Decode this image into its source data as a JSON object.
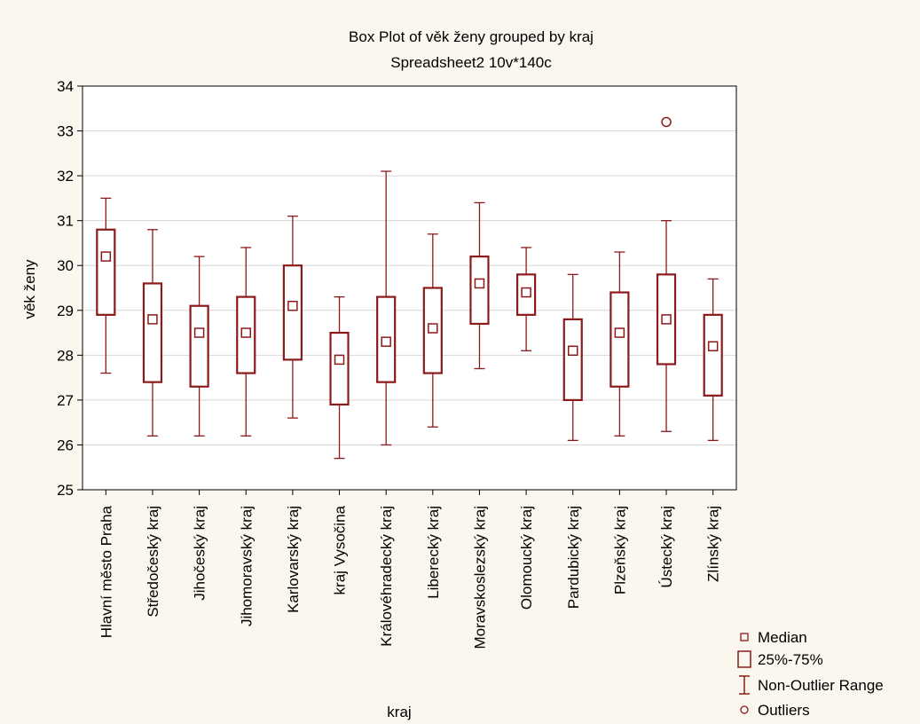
{
  "chart_data": {
    "type": "box",
    "title": "Box Plot of věk ženy grouped by  kraj",
    "subtitle": "Spreadsheet2 10v*140c",
    "xlabel": "kraj",
    "ylabel": "věk ženy",
    "ylim": [
      25,
      34
    ],
    "yticks": [
      25,
      26,
      27,
      28,
      29,
      30,
      31,
      32,
      33,
      34
    ],
    "grid": true,
    "legend_position": "bottom-right",
    "colors": {
      "box": "#8b1a1a",
      "grid": "#d7d7d7",
      "background": "#fbf6ee",
      "plot_background": "#ffffff"
    },
    "legend": [
      {
        "key": "median",
        "label": "Median"
      },
      {
        "key": "box",
        "label": "25%-75%"
      },
      {
        "key": "range",
        "label": "Non-Outlier Range"
      },
      {
        "key": "outlier",
        "label": "Outliers"
      }
    ],
    "categories": [
      "Hlavní město Praha",
      "Středočeský kraj",
      "Jihočeský kraj",
      "Jihomoravský kraj",
      "Karlovarský kraj",
      "kraj Vysočina",
      "Královéhradecký kraj",
      "Liberecký kraj",
      "Moravskoslezský kraj",
      "Olomoucký kraj",
      "Pardubický kraj",
      "Plzeňský kraj",
      "Ústecký kraj",
      "Zlínský kraj"
    ],
    "boxes": [
      {
        "median": 30.2,
        "q1": 28.9,
        "q3": 30.8,
        "min": 27.6,
        "max": 31.5,
        "outliers": []
      },
      {
        "median": 28.8,
        "q1": 27.4,
        "q3": 29.6,
        "min": 26.2,
        "max": 30.8,
        "outliers": []
      },
      {
        "median": 28.5,
        "q1": 27.3,
        "q3": 29.1,
        "min": 26.2,
        "max": 30.2,
        "outliers": []
      },
      {
        "median": 28.5,
        "q1": 27.6,
        "q3": 29.3,
        "min": 26.2,
        "max": 30.4,
        "outliers": []
      },
      {
        "median": 29.1,
        "q1": 27.9,
        "q3": 30.0,
        "min": 26.6,
        "max": 31.1,
        "outliers": []
      },
      {
        "median": 27.9,
        "q1": 26.9,
        "q3": 28.5,
        "min": 25.7,
        "max": 29.3,
        "outliers": []
      },
      {
        "median": 28.3,
        "q1": 27.4,
        "q3": 29.3,
        "min": 26.0,
        "max": 32.1,
        "outliers": []
      },
      {
        "median": 28.6,
        "q1": 27.6,
        "q3": 29.5,
        "min": 26.4,
        "max": 30.7,
        "outliers": []
      },
      {
        "median": 29.6,
        "q1": 28.7,
        "q3": 30.2,
        "min": 27.7,
        "max": 31.4,
        "outliers": []
      },
      {
        "median": 29.4,
        "q1": 28.9,
        "q3": 29.8,
        "min": 28.1,
        "max": 30.4,
        "outliers": []
      },
      {
        "median": 28.1,
        "q1": 27.0,
        "q3": 28.8,
        "min": 26.1,
        "max": 29.8,
        "outliers": []
      },
      {
        "median": 28.5,
        "q1": 27.3,
        "q3": 29.4,
        "min": 26.2,
        "max": 30.3,
        "outliers": []
      },
      {
        "median": 28.8,
        "q1": 27.8,
        "q3": 29.8,
        "min": 26.3,
        "max": 31.0,
        "outliers": [
          33.2
        ]
      },
      {
        "median": 28.2,
        "q1": 27.1,
        "q3": 28.9,
        "min": 26.1,
        "max": 29.7,
        "outliers": []
      }
    ]
  }
}
